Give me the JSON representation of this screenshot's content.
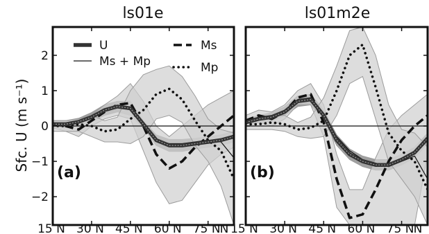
{
  "chart_data": [
    {
      "type": "line",
      "title": "ls01e",
      "panel_label": "(a)",
      "ylabel": "Sfc. U (m s⁻¹)",
      "x": [
        15,
        20,
        25,
        30,
        35,
        40,
        45,
        50,
        55,
        60,
        65,
        70,
        75,
        80,
        85
      ],
      "xlim": [
        15,
        85
      ],
      "ylim": [
        -2.8,
        2.8
      ],
      "xticks": [
        15,
        30,
        45,
        60,
        75
      ],
      "xtick_labels": [
        "15 N",
        "30 N",
        "45 N",
        "60 N",
        "75 N"
      ],
      "trailing_tick_label": "N",
      "yticks": [
        -2,
        -1,
        0,
        1,
        2
      ],
      "ytick_labels": [
        "−2",
        "−1",
        "0",
        "1",
        "2"
      ],
      "grid": false,
      "legend_position": "top",
      "series": [
        {
          "name": "U",
          "style": "thick",
          "values": [
            0.05,
            0.05,
            0.12,
            0.25,
            0.45,
            0.55,
            0.5,
            0.05,
            -0.4,
            -0.55,
            -0.55,
            -0.5,
            -0.45,
            -0.4,
            -0.3
          ],
          "band_lower": [
            -0.05,
            -0.05,
            0.0,
            0.12,
            0.3,
            0.4,
            0.3,
            -0.05,
            -0.55,
            -0.72,
            -0.72,
            -0.65,
            -0.6,
            -0.55,
            -0.45
          ],
          "band_upper": [
            0.15,
            0.15,
            0.22,
            0.38,
            0.6,
            0.7,
            0.7,
            0.15,
            -0.25,
            -0.38,
            -0.38,
            -0.35,
            -0.3,
            -0.25,
            -0.15
          ]
        },
        {
          "name": "Ms + Mp",
          "style": "thin",
          "values": [
            0.0,
            0.05,
            0.1,
            0.25,
            0.45,
            0.55,
            0.5,
            0.05,
            -0.4,
            -0.5,
            -0.5,
            -0.45,
            -0.4,
            -0.45,
            -0.9
          ]
        },
        {
          "name": "Ms",
          "style": "dashed",
          "values": [
            0.05,
            0.0,
            -0.1,
            0.15,
            0.4,
            0.6,
            0.65,
            0.0,
            -0.8,
            -1.2,
            -1.0,
            -0.6,
            -0.3,
            0.0,
            0.3
          ],
          "band_lower": [
            -0.05,
            -0.15,
            -0.3,
            0.0,
            0.2,
            0.3,
            0.2,
            -0.7,
            -1.6,
            -2.2,
            -2.1,
            -1.6,
            -1.1,
            -0.8,
            -0.6
          ],
          "band_upper": [
            0.15,
            0.15,
            0.1,
            0.3,
            0.6,
            0.85,
            1.2,
            0.7,
            0.0,
            -0.3,
            0.0,
            0.3,
            0.6,
            0.8,
            1.0
          ]
        },
        {
          "name": "Mp",
          "style": "dotted",
          "values": [
            0.0,
            0.0,
            0.05,
            0.0,
            -0.15,
            -0.1,
            0.2,
            0.45,
            0.9,
            1.05,
            0.75,
            0.15,
            -0.4,
            -0.7,
            -1.5
          ],
          "band_lower": [
            -0.15,
            -0.15,
            -0.15,
            -0.3,
            -0.45,
            -0.45,
            -0.5,
            -0.3,
            0.2,
            0.3,
            0.1,
            -0.55,
            -1.0,
            -1.7,
            -2.8
          ],
          "band_upper": [
            0.15,
            0.15,
            0.2,
            0.3,
            0.15,
            0.25,
            1.0,
            1.45,
            1.6,
            1.7,
            1.4,
            0.85,
            0.2,
            -0.1,
            -0.2
          ]
        }
      ]
    },
    {
      "type": "line",
      "title": "ls01m2e",
      "panel_label": "(b)",
      "x": [
        15,
        20,
        25,
        30,
        35,
        40,
        45,
        50,
        55,
        60,
        65,
        70,
        75,
        80,
        85
      ],
      "xlim": [
        15,
        85
      ],
      "ylim": [
        -2.8,
        2.8
      ],
      "xticks": [
        15,
        30,
        45,
        60,
        75
      ],
      "xtick_labels": [
        "15 N",
        "30 N",
        "45 N",
        "60 N",
        "75 N"
      ],
      "trailing_tick_label": "N",
      "grid": false,
      "series": [
        {
          "name": "U",
          "style": "thick",
          "values": [
            0.1,
            0.2,
            0.25,
            0.4,
            0.7,
            0.75,
            0.3,
            -0.4,
            -0.8,
            -1.0,
            -1.1,
            -1.1,
            -0.95,
            -0.75,
            -0.35
          ],
          "band_lower": [
            0.0,
            0.1,
            0.12,
            0.3,
            0.55,
            0.6,
            0.15,
            -0.55,
            -0.95,
            -1.15,
            -1.25,
            -1.25,
            -1.1,
            -0.9,
            -0.5
          ],
          "band_upper": [
            0.2,
            0.3,
            0.38,
            0.55,
            0.85,
            0.9,
            0.45,
            -0.25,
            -0.65,
            -0.85,
            -0.95,
            -0.95,
            -0.8,
            -0.6,
            -0.2
          ]
        },
        {
          "name": "Ms + Mp",
          "style": "thin",
          "values": [
            0.15,
            0.25,
            0.3,
            0.45,
            0.75,
            0.8,
            0.3,
            -0.3,
            -0.7,
            -0.95,
            -1.05,
            -1.15,
            -1.0,
            -0.85,
            -1.5
          ]
        },
        {
          "name": "Ms",
          "style": "dashed",
          "values": [
            0.15,
            0.3,
            0.2,
            0.4,
            0.8,
            0.9,
            0.1,
            -1.5,
            -2.6,
            -2.5,
            -1.8,
            -1.0,
            -0.4,
            0.0,
            0.3
          ],
          "band_lower": [
            0.0,
            0.1,
            0.0,
            0.2,
            0.6,
            0.6,
            -0.3,
            -2.3,
            -2.8,
            -2.8,
            -2.8,
            -2.8,
            -2.8,
            -2.8,
            -0.8
          ],
          "band_upper": [
            0.3,
            0.45,
            0.4,
            0.6,
            1.0,
            1.2,
            0.6,
            -0.8,
            -1.8,
            -1.8,
            -0.9,
            -0.1,
            0.3,
            0.6,
            0.9
          ]
        },
        {
          "name": "Mp",
          "style": "dotted",
          "values": [
            0.05,
            0.05,
            0.1,
            0.05,
            -0.1,
            -0.05,
            0.15,
            1.0,
            2.0,
            2.3,
            1.1,
            -0.2,
            -0.7,
            -1.0,
            -1.8
          ],
          "band_lower": [
            -0.1,
            -0.1,
            -0.1,
            -0.15,
            -0.3,
            -0.35,
            -0.3,
            0.3,
            1.2,
            1.4,
            0.2,
            -1.0,
            -1.5,
            -2.0,
            -2.8
          ],
          "band_upper": [
            0.2,
            0.2,
            0.3,
            0.3,
            0.1,
            0.25,
            0.8,
            1.7,
            2.7,
            2.8,
            2.0,
            0.6,
            -0.1,
            -0.2,
            -0.6
          ]
        }
      ]
    }
  ]
}
